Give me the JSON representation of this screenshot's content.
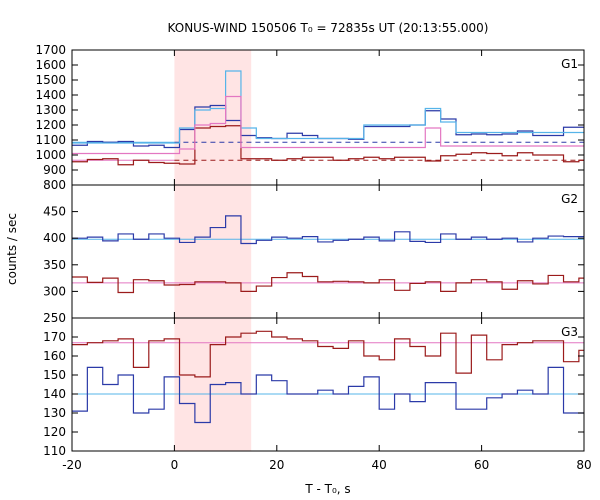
{
  "chart_data": {
    "type": "line",
    "title": "KONUS-WIND 150506 T₀ = 72835s UT (20:13:55.000)",
    "xlabel": "T - T₀, s",
    "ylabel": "counts / sec",
    "xlim": [
      -20,
      80
    ],
    "xticks": [
      -20,
      0,
      20,
      40,
      60,
      80
    ],
    "highlight_interval": {
      "x": [
        0,
        15
      ],
      "color": "#ffe4e4"
    },
    "colors": {
      "dark_blue": "#2b3aa8",
      "dark_red": "#9b1b1b",
      "light_blue": "#56b4e9",
      "pink": "#e377c2",
      "background_line_blue": "#56b4e9",
      "background_line_pink": "#e377c2"
    },
    "step_x": [
      -20,
      -17,
      -14,
      -11,
      -8,
      -5,
      -2,
      1,
      4,
      7,
      10,
      13,
      16,
      19,
      22,
      25,
      28,
      31,
      34,
      37,
      40,
      43,
      46,
      49,
      52,
      55,
      58,
      61,
      64,
      67,
      70,
      73,
      76,
      79,
      80
    ],
    "panels": [
      {
        "label": "G1",
        "ylim": [
          800,
          1700
        ],
        "yticks": [
          800,
          900,
          1000,
          1100,
          1200,
          1300,
          1400,
          1500,
          1600,
          1700
        ],
        "series": [
          {
            "color": "dark_blue",
            "values": [
              1065,
              1090,
              1085,
              1090,
              1060,
              1065,
              1050,
              1170,
              1320,
              1330,
              1230,
              1130,
              1115,
              1110,
              1145,
              1130,
              1110,
              1110,
              1105,
              1190,
              1190,
              1190,
              1200,
              1295,
              1240,
              1135,
              1140,
              1135,
              1140,
              1160,
              1130,
              1130,
              1185,
              1185
            ]
          },
          {
            "color": "light_blue",
            "values": [
              1080,
              1080,
              1080,
              1080,
              1080,
              1080,
              1080,
              1180,
              1300,
              1310,
              1560,
              1180,
              1110,
              1110,
              1110,
              1110,
              1110,
              1110,
              1110,
              1200,
              1200,
              1200,
              1200,
              1310,
              1220,
              1150,
              1150,
              1150,
              1150,
              1150,
              1150,
              1150,
              1150,
              1150
            ]
          },
          {
            "color": "dark_red",
            "values": [
              955,
              970,
              975,
              935,
              965,
              950,
              945,
              940,
              1180,
              1190,
              1195,
              975,
              975,
              965,
              975,
              985,
              985,
              965,
              975,
              985,
              975,
              985,
              985,
              960,
              995,
              1005,
              1015,
              1010,
              995,
              1015,
              1000,
              1000,
              955,
              965
            ]
          },
          {
            "color": "pink",
            "values": [
              1010,
              1010,
              1010,
              1010,
              1010,
              1010,
              1010,
              1040,
              1200,
              1210,
              1390,
              1050,
              1050,
              1050,
              1050,
              1050,
              1050,
              1050,
              1050,
              1050,
              1050,
              1050,
              1050,
              1180,
              1060,
              1060,
              1060,
              1060,
              1060,
              1060,
              1060,
              1060,
              1060,
              1060
            ]
          }
        ],
        "background_levels": [
          {
            "color": "background_line_blue",
            "value": 1085,
            "dashed_from": 0
          },
          {
            "color": "background_line_pink",
            "value": 965,
            "dashed_from": 0
          }
        ]
      },
      {
        "label": "G2",
        "ylim": [
          250,
          500
        ],
        "yticks": [
          250,
          300,
          350,
          400,
          450
        ],
        "series": [
          {
            "color": "dark_blue",
            "values": [
              400,
              402,
              395,
              408,
              398,
              408,
              400,
              392,
              402,
              420,
              442,
              390,
              396,
              402,
              400,
              403,
              393,
              396,
              398,
              402,
              395,
              412,
              394,
              392,
              408,
              398,
              402,
              398,
              400,
              393,
              400,
              404,
              403,
              403
            ]
          },
          {
            "color": "dark_red",
            "values": [
              327,
              317,
              325,
              298,
              322,
              320,
              312,
              313,
              318,
              318,
              316,
              300,
              310,
              326,
              335,
              328,
              318,
              319,
              318,
              316,
              322,
              302,
              315,
              318,
              300,
              316,
              322,
              318,
              304,
              320,
              314,
              330,
              318,
              325
            ]
          }
        ],
        "background_levels": [
          {
            "color": "background_line_blue",
            "value": 398
          },
          {
            "color": "background_line_pink",
            "value": 316
          }
        ]
      },
      {
        "label": "G3",
        "ylim": [
          110,
          180
        ],
        "yticks": [
          110,
          120,
          130,
          140,
          150,
          160,
          170
        ],
        "series": [
          {
            "color": "dark_blue",
            "values": [
              131,
              154,
              145,
              150,
              130,
              132,
              149,
              135,
              125,
              145,
              146,
              140,
              150,
              147,
              140,
              140,
              142,
              140,
              144,
              149,
              132,
              140,
              136,
              146,
              146,
              132,
              132,
              138,
              140,
              142,
              140,
              154,
              130,
              130
            ]
          },
          {
            "color": "dark_red",
            "values": [
              166,
              167,
              168,
              169,
              154,
              168,
              169,
              150,
              149,
              166,
              170,
              172,
              173,
              170,
              169,
              168,
              165,
              164,
              168,
              160,
              158,
              169,
              165,
              160,
              172,
              151,
              171,
              158,
              166,
              167,
              168,
              168,
              157,
              163
            ]
          }
        ],
        "background_levels": [
          {
            "color": "background_line_blue",
            "value": 140
          },
          {
            "color": "background_line_pink",
            "value": 167
          }
        ]
      }
    ]
  }
}
